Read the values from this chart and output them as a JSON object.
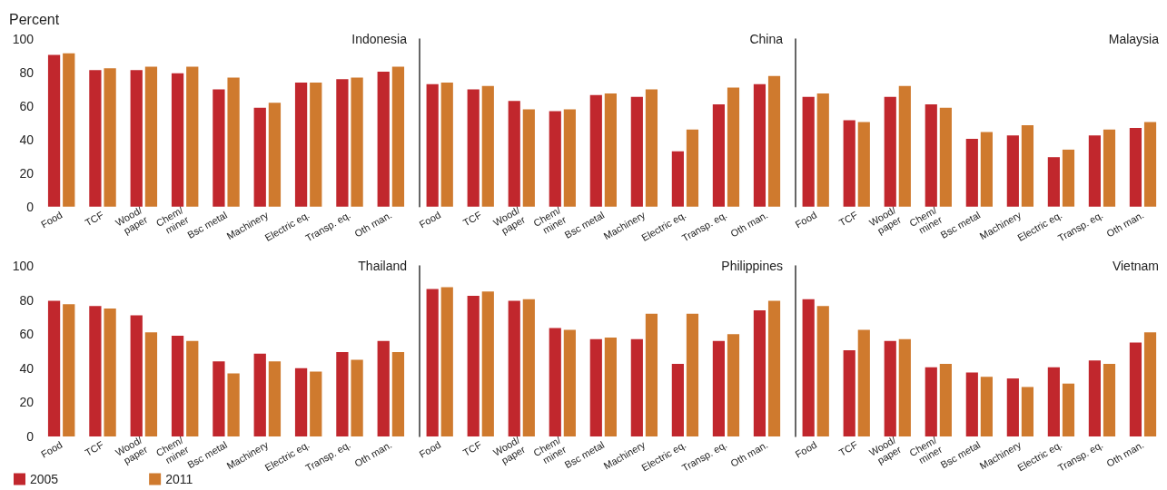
{
  "chart_data": [
    {
      "type": "bar",
      "title": "Indonesia",
      "ylabel": "Percent",
      "categories": [
        "Food",
        "TCF",
        "Wood/\npaper",
        "Chem/\nminer",
        "Bsc metal",
        "Machinery",
        "Electric eq.",
        "Transp. eq.",
        "Oth man."
      ],
      "ylim": [
        0,
        100
      ],
      "yticks": [
        0,
        20,
        40,
        60,
        80,
        100
      ],
      "grid": false,
      "legend": false,
      "series": [
        {
          "color": "#c1272d",
          "values": [
            90.5,
            81.5,
            81.5,
            79.5,
            70,
            59,
            74,
            76,
            80.5
          ]
        },
        {
          "color": "#cf7a2e",
          "values": [
            91.5,
            82.5,
            83.5,
            83.5,
            77,
            62,
            74,
            77,
            83.5
          ]
        }
      ]
    },
    {
      "type": "bar",
      "title": "China",
      "categories": [
        "Food",
        "TCF",
        "Wood/\npaper",
        "Chem/\nminer",
        "Bsc metal",
        "Machinery",
        "Electric eq.",
        "Transp. eq.",
        "Oth man."
      ],
      "ylim": [
        0,
        100
      ],
      "yticks": [
        0,
        20,
        40,
        60,
        80,
        100
      ],
      "tick_labels": "x",
      "grid": false,
      "legend": false,
      "series": [
        {
          "color": "#c1272d",
          "values": [
            73,
            70,
            63,
            57,
            66.5,
            65.5,
            33,
            61,
            73
          ]
        },
        {
          "color": "#cf7a2e",
          "values": [
            74,
            72,
            58,
            58,
            67.5,
            70,
            46,
            71,
            78
          ]
        }
      ]
    },
    {
      "type": "bar",
      "title": "Malaysia",
      "categories": [
        "Food",
        "TCF",
        "Wood/\npaper",
        "Chem/\nminer",
        "Bsc metal",
        "Machinery",
        "Electric eq.",
        "Transp. eq.",
        "Oth man."
      ],
      "ylim": [
        0,
        100
      ],
      "yticks": [
        0,
        20,
        40,
        60,
        80,
        100
      ],
      "tick_labels": "x",
      "grid": false,
      "legend": false,
      "series": [
        {
          "color": "#c1272d",
          "values": [
            65.5,
            51.5,
            65.5,
            61,
            40.5,
            42.5,
            29.5,
            42.5,
            47
          ]
        },
        {
          "color": "#cf7a2e",
          "values": [
            67.5,
            50.5,
            72,
            59,
            44.5,
            48.5,
            34,
            46,
            50.5
          ]
        }
      ]
    },
    {
      "type": "bar",
      "title": "Thailand",
      "categories": [
        "Food",
        "TCF",
        "Wood/\npaper",
        "Chem/\nminer",
        "Bsc metal",
        "Machinery",
        "Electric eq.",
        "Transp. eq.",
        "Oth man."
      ],
      "ylim": [
        0,
        100
      ],
      "yticks": [
        0,
        20,
        40,
        60,
        80,
        100
      ],
      "grid": false,
      "legend": "bottom left",
      "series": [
        {
          "name": "2005",
          "color": "#c1272d",
          "values": [
            79.5,
            76.5,
            71,
            59,
            44,
            48.5,
            40,
            49.5,
            56
          ]
        },
        {
          "name": "2011",
          "color": "#cf7a2e",
          "values": [
            77.5,
            75,
            61,
            56,
            37,
            44,
            38,
            45,
            49.5
          ]
        }
      ]
    },
    {
      "type": "bar",
      "title": "Philippines",
      "categories": [
        "Food",
        "TCF",
        "Wood/\npaper",
        "Chem/\nminer",
        "Bsc metal",
        "Machinery",
        "Electric eq.",
        "Transp. eq.",
        "Oth man."
      ],
      "ylim": [
        0,
        100
      ],
      "yticks": [
        0,
        20,
        40,
        60,
        80,
        100
      ],
      "tick_labels": "x",
      "grid": false,
      "legend": false,
      "series": [
        {
          "color": "#c1272d",
          "values": [
            86.5,
            82.5,
            79.5,
            63.5,
            57,
            57,
            42.5,
            56,
            74
          ]
        },
        {
          "color": "#cf7a2e",
          "values": [
            87.5,
            85,
            80.5,
            62.5,
            58,
            72,
            72,
            60,
            79.5
          ]
        }
      ]
    },
    {
      "type": "bar",
      "title": "Vietnam",
      "categories": [
        "Food",
        "TCF",
        "Wood/\npaper",
        "Chem/\nminer",
        "Bsc metal",
        "Machinery",
        "Electric eq.",
        "Transp. eq.",
        "Oth man."
      ],
      "ylim": [
        0,
        100
      ],
      "yticks": [
        0,
        20,
        40,
        60,
        80,
        100
      ],
      "tick_labels": "x",
      "grid": false,
      "legend": false,
      "series": [
        {
          "color": "#c1272d",
          "values": [
            80.5,
            50.5,
            56,
            40.5,
            37.5,
            34,
            40.5,
            44.5,
            55
          ]
        },
        {
          "color": "#cf7a2e",
          "values": [
            76.5,
            62.5,
            57,
            42.5,
            35,
            29,
            31,
            42.5,
            61
          ]
        }
      ]
    }
  ]
}
